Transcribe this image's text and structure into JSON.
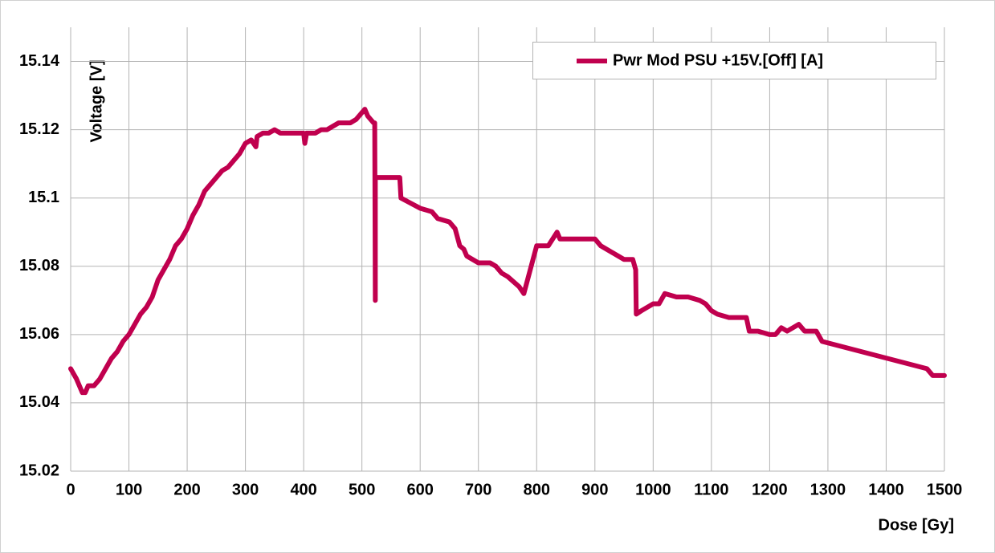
{
  "chart_data": {
    "type": "line",
    "x_label": "Dose [Gy]",
    "y_label": "Voltage [V]",
    "x": [
      0,
      10,
      20,
      25,
      30,
      40,
      50,
      60,
      70,
      80,
      90,
      100,
      110,
      120,
      130,
      140,
      150,
      160,
      170,
      180,
      190,
      200,
      210,
      220,
      230,
      240,
      250,
      260,
      270,
      280,
      290,
      300,
      310,
      318,
      320,
      330,
      340,
      350,
      360,
      380,
      400,
      402,
      405,
      420,
      430,
      440,
      450,
      460,
      470,
      480,
      490,
      500,
      505,
      510,
      520,
      522,
      523,
      523,
      565,
      567,
      600,
      620,
      630,
      650,
      660,
      668,
      675,
      680,
      690,
      700,
      720,
      730,
      740,
      750,
      770,
      778,
      800,
      810,
      820,
      835,
      840,
      860,
      880,
      900,
      910,
      930,
      940,
      950,
      965,
      970,
      971,
      980,
      990,
      1000,
      1010,
      1020,
      1040,
      1060,
      1080,
      1090,
      1100,
      1110,
      1130,
      1160,
      1165,
      1180,
      1200,
      1210,
      1220,
      1230,
      1250,
      1260,
      1270,
      1280,
      1290,
      1470,
      1480,
      1500
    ],
    "series": [
      {
        "name": "Pwr Mod PSU +15V.[Off] [A]",
        "color": "#c0004e",
        "values": [
          15.05,
          15.047,
          15.043,
          15.043,
          15.045,
          15.045,
          15.047,
          15.05,
          15.053,
          15.055,
          15.058,
          15.06,
          15.063,
          15.066,
          15.068,
          15.071,
          15.076,
          15.079,
          15.082,
          15.086,
          15.088,
          15.091,
          15.095,
          15.098,
          15.102,
          15.104,
          15.106,
          15.108,
          15.109,
          15.111,
          15.113,
          15.116,
          15.117,
          15.115,
          15.118,
          15.119,
          15.119,
          15.12,
          15.119,
          15.119,
          15.119,
          15.116,
          15.119,
          15.119,
          15.12,
          15.12,
          15.121,
          15.122,
          15.122,
          15.122,
          15.123,
          15.125,
          15.126,
          15.124,
          15.122,
          15.122,
          15.07,
          15.106,
          15.106,
          15.1,
          15.097,
          15.096,
          15.094,
          15.093,
          15.091,
          15.086,
          15.085,
          15.083,
          15.082,
          15.081,
          15.081,
          15.08,
          15.078,
          15.077,
          15.074,
          15.072,
          15.086,
          15.086,
          15.086,
          15.09,
          15.088,
          15.088,
          15.088,
          15.088,
          15.086,
          15.084,
          15.083,
          15.082,
          15.082,
          15.079,
          15.066,
          15.067,
          15.068,
          15.069,
          15.069,
          15.072,
          15.071,
          15.071,
          15.07,
          15.069,
          15.067,
          15.066,
          15.065,
          15.065,
          15.061,
          15.061,
          15.06,
          15.06,
          15.062,
          15.061,
          15.063,
          15.061,
          15.061,
          15.061,
          15.058,
          15.05,
          15.048,
          15.048
        ]
      }
    ],
    "xlim": [
      0,
      1500
    ],
    "xticks": [
      0,
      100,
      200,
      300,
      400,
      500,
      600,
      700,
      800,
      900,
      1000,
      1100,
      1200,
      1300,
      1400,
      1500
    ],
    "ylim": [
      15.02,
      15.15
    ],
    "yticks": [
      15.02,
      15.04,
      15.06,
      15.08,
      15.1,
      15.12,
      15.14
    ],
    "grid": true,
    "legend": "top-right"
  }
}
